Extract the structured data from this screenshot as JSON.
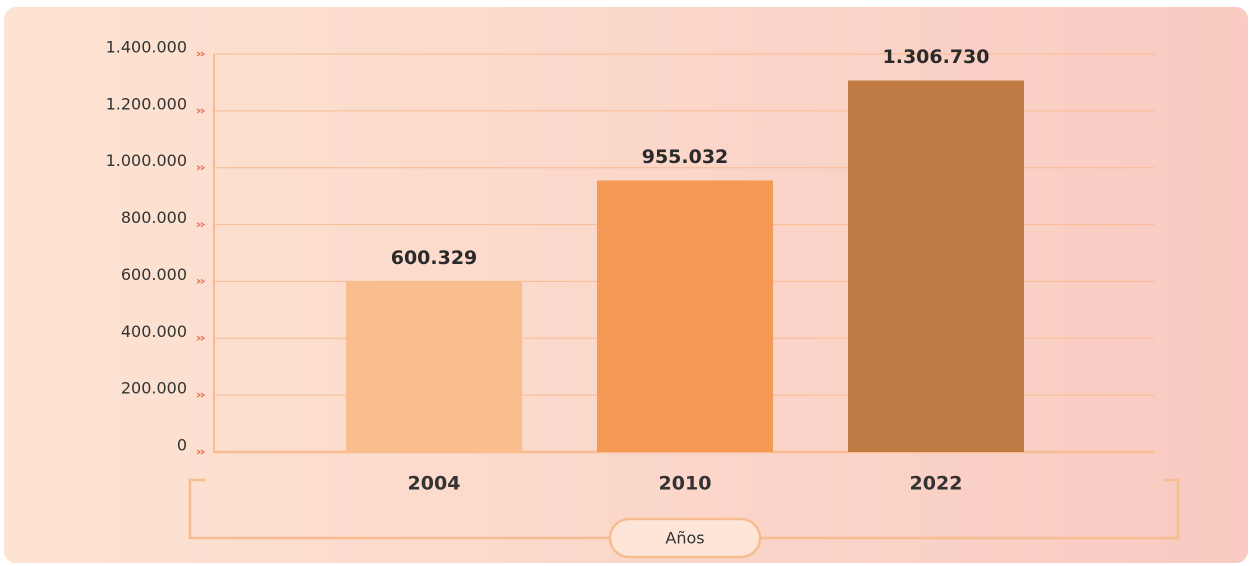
{
  "chart_data": {
    "type": "bar",
    "x_label": "Años",
    "categories": [
      "2004",
      "2010",
      "2022"
    ],
    "values": [
      600329,
      955032,
      1306730
    ],
    "value_labels": [
      "600.329",
      "955.032",
      "1.306.730"
    ],
    "colors": [
      "#f9bd8e",
      "#f59a55",
      "#bf7b43"
    ],
    "ylim": [
      0,
      1400000
    ],
    "yticks": [
      0,
      {
        "value": 200000,
        "label": "200.000"
      },
      {
        "value": 400000,
        "label": "400.000"
      },
      {
        "value": 600000,
        "label": "600.000"
      },
      {
        "value": 800000,
        "label": "800.000"
      },
      {
        "value": 1000000,
        "label": "1.000.000"
      },
      {
        "value": 1200000,
        "label": "1.200.000"
      },
      {
        "value": 1400000,
        "label": "1.400.000"
      }
    ],
    "grid": true
  }
}
